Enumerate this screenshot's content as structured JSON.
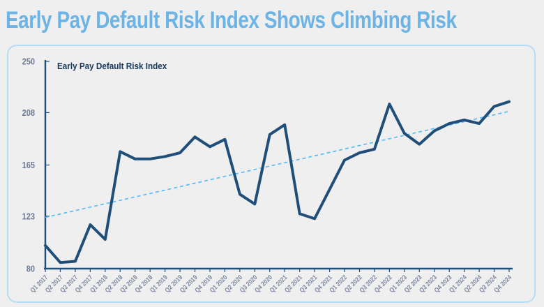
{
  "page": {
    "title": "Early Pay Default Risk Index Shows Climbing Risk"
  },
  "chart": {
    "legend_label": "Early Pay Default Risk Index"
  },
  "chart_data": {
    "type": "line",
    "title": "Early Pay Default Risk Index",
    "categories": [
      "Q1 2017",
      "Q2 2017",
      "Q3 2017",
      "Q4 2017",
      "Q1 2018",
      "Q2 2018",
      "Q3 2018",
      "Q4 2018",
      "Q1 2019",
      "Q2 2019",
      "Q3 2019",
      "Q4 2019",
      "Q1 2020",
      "Q2 2020",
      "Q3 2020",
      "Q4 2020",
      "Q1 2021",
      "Q2 2021",
      "Q3 2021",
      "Q4 2021",
      "Q1 2022",
      "Q2 2022",
      "Q3 2022",
      "Q4 2022",
      "Q1 2023",
      "Q2 2023",
      "Q3 2023",
      "Q4 2023",
      "Q1 2024",
      "Q2 2024",
      "Q3 2024",
      "Q4 2024"
    ],
    "series": [
      {
        "name": "Early Pay Default Risk Index",
        "style": "solid",
        "color": "#1f4e79",
        "values": [
          99,
          85,
          86,
          116,
          104,
          176,
          170,
          170,
          172,
          175,
          188,
          180,
          186,
          141,
          133,
          190,
          198,
          125,
          121,
          145,
          169,
          175,
          178,
          215,
          191,
          182,
          193,
          199,
          202,
          199,
          213,
          217
        ]
      },
      {
        "name": "Linear trend",
        "style": "dashed",
        "color": "#5abdf0",
        "trend_start": 122,
        "trend_end": 209
      }
    ],
    "xlabel": "",
    "ylabel": "",
    "ylim": [
      80,
      250
    ],
    "yticks": [
      250,
      208,
      165,
      123,
      80
    ],
    "grid": false,
    "legend_position": "top-left"
  },
  "colors": {
    "background": "#f0eff0",
    "title": "#6cb4e6",
    "panel_border": "#b5ddf3",
    "line": "#1f4e79",
    "trend": "#5abdf0",
    "axis": "#1f4e79",
    "tick_label": "#6e7d95",
    "x_label": "#7d89a2",
    "legend_text": "#17375d"
  }
}
